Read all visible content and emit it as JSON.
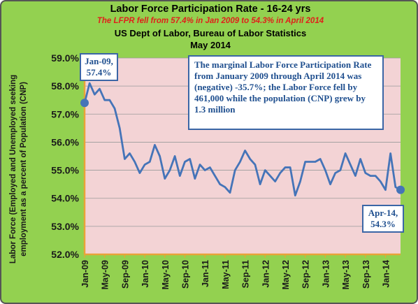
{
  "header": {
    "title": "Labor Force Participation Rate - 16-24 yrs",
    "subtitle": "The LFPR fell from 57.4% in Jan 2009 to 54.3% in April 2014",
    "source": "US Dept of Labor, Bureau of Labor Statistics",
    "date": "May 2014"
  },
  "callouts": {
    "start": [
      "Jan-09,",
      "57.4%"
    ],
    "end": [
      "Apr-14,",
      "54.3%"
    ],
    "note": "The marginal Labor Force Participation Rate from January 2009 through April 2014 was (negative) -35.7%; the Labor Force fell by 461,000 while the population (CNP) grew by 1.3 million"
  },
  "colors": {
    "background": "#93d150",
    "plot_area": "#f3d3d5",
    "line": "#4574b8",
    "callout_border": "#3b66a6",
    "callout_text": "#1f4f8f",
    "subtitle": "#e0211b"
  },
  "chart_data": {
    "type": "line",
    "title": "Labor Force Participation Rate - 16-24 yrs",
    "subtitle": "The LFPR fell from 57.4% in Jan 2009 to 54.3% in April 2014",
    "xlabel": "",
    "ylabel": "Labor Force (Employed and Unemployed seeking employment as a percent of Population (CNP)",
    "ylim": [
      52.0,
      59.0
    ],
    "yticks": [
      "52.0%",
      "53.0%",
      "54.0%",
      "55.0%",
      "56.0%",
      "57.0%",
      "58.0%",
      "59.0%"
    ],
    "xtick_labels": [
      "Jan-09",
      "May-09",
      "Sep-09",
      "Jan-10",
      "May-10",
      "Sep-10",
      "Jan-11",
      "May-11",
      "Sep-11",
      "Jan-12",
      "May-12",
      "Sep-12",
      "Jan-13",
      "May-13",
      "Sep-13",
      "Jan-14"
    ],
    "grid": "horizontal",
    "legend": "none",
    "series": [
      {
        "values": [
          57.4,
          58.1,
          57.7,
          57.9,
          57.5,
          57.5,
          57.2,
          56.5,
          55.4,
          55.6,
          55.3,
          54.9,
          55.2,
          55.3,
          55.9,
          55.5,
          54.7,
          55.0,
          55.5,
          54.8,
          55.3,
          55.4,
          54.7,
          55.2,
          55.0,
          55.1,
          54.8,
          54.5,
          54.4,
          54.2,
          55.0,
          55.3,
          55.7,
          55.4,
          55.2,
          54.5,
          55.0,
          54.8,
          54.6,
          54.9,
          55.1,
          55.1,
          54.1,
          54.6,
          55.3,
          55.3,
          55.3,
          55.4,
          55.0,
          54.5,
          54.9,
          55.0,
          55.6,
          55.2,
          54.8,
          55.4,
          54.9,
          54.8,
          54.8,
          54.6,
          54.3,
          55.6,
          54.4,
          54.3
        ]
      }
    ]
  }
}
